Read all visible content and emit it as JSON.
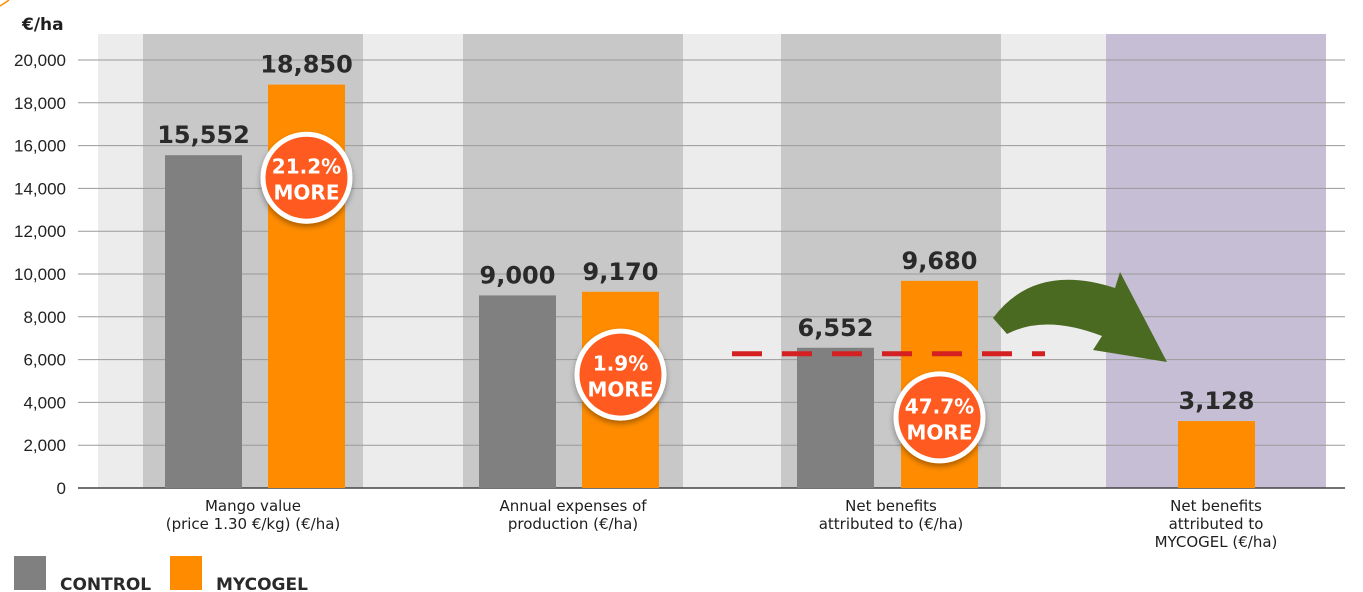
{
  "chart_data": {
    "type": "bar",
    "ylabel": "€/ha",
    "ylim": [
      0,
      20000
    ],
    "yticks": [
      "0",
      "2,000",
      "4,000",
      "6,000",
      "8,000",
      "10,000",
      "12,000",
      "14,000",
      "16,000",
      "18,000",
      "20,000"
    ],
    "categories": [
      [
        "Mango value",
        "(price 1.30 €/kg) (€/ha)"
      ],
      [
        "Annual expenses of",
        "production (€/ha)"
      ],
      [
        "Net benefits",
        "attributed to (€/ha)"
      ],
      [
        "Net benefits",
        "attributed to",
        "MYCOGEL (€/ha)"
      ]
    ],
    "series": [
      {
        "name": "CONTROL",
        "color": "#808080",
        "values": [
          15552,
          9000,
          6552,
          null
        ],
        "labels": [
          "15,552",
          "9,000",
          "6,552",
          ""
        ]
      },
      {
        "name": "MYCOGEL",
        "color": "#ff8c00",
        "values": [
          18850,
          9170,
          9680,
          3128
        ],
        "labels": [
          "18,850",
          "9,170",
          "9,680",
          "3,128"
        ]
      }
    ],
    "badges": [
      {
        "category": 0,
        "line1": "21.2%",
        "line2": "MORE",
        "y": 14500
      },
      {
        "category": 1,
        "line1": "1.9%",
        "line2": "MORE",
        "y": 5300
      },
      {
        "category": 2,
        "line1": "47.7%",
        "line2": "MORE",
        "y": 3300
      }
    ],
    "reference_line": {
      "value": 6552,
      "color": "#d42020"
    },
    "grid": true,
    "legend": {
      "position": "bottom-left"
    },
    "colors": {
      "badge": "#ff5a1f",
      "arrow": "#4a6a22",
      "panel": "#c8c8c8",
      "panel_last": "#c6bed4",
      "gap": "#ececec"
    }
  }
}
